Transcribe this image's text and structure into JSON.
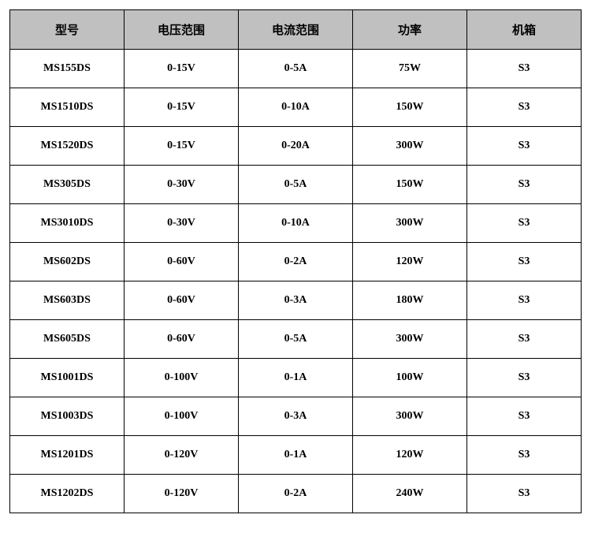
{
  "spec_table": {
    "type": "table",
    "header_background": "#c0c0c0",
    "border_color": "#000000",
    "background_color": "#ffffff",
    "text_color": "#000000",
    "header_fontsize": 15,
    "cell_fontsize": 14,
    "columns": [
      "型号",
      "电压范围",
      "电流范围",
      "功率",
      "机箱"
    ],
    "rows": [
      [
        "MS155DS",
        "0-15V",
        "0-5A",
        "75W",
        "S3"
      ],
      [
        "MS1510DS",
        "0-15V",
        "0-10A",
        "150W",
        "S3"
      ],
      [
        "MS1520DS",
        "0-15V",
        "0-20A",
        "300W",
        "S3"
      ],
      [
        "MS305DS",
        "0-30V",
        "0-5A",
        "150W",
        "S3"
      ],
      [
        "MS3010DS",
        "0-30V",
        "0-10A",
        "300W",
        "S3"
      ],
      [
        "MS602DS",
        "0-60V",
        "0-2A",
        "120W",
        "S3"
      ],
      [
        "MS603DS",
        "0-60V",
        "0-3A",
        "180W",
        "S3"
      ],
      [
        "MS605DS",
        "0-60V",
        "0-5A",
        "300W",
        "S3"
      ],
      [
        "MS1001DS",
        "0-100V",
        "0-1A",
        "100W",
        "S3"
      ],
      [
        "MS1003DS",
        "0-100V",
        "0-3A",
        "300W",
        "S3"
      ],
      [
        "MS1201DS",
        "0-120V",
        "0-1A",
        "120W",
        "S3"
      ],
      [
        "MS1202DS",
        "0-120V",
        "0-2A",
        "240W",
        "S3"
      ]
    ]
  }
}
